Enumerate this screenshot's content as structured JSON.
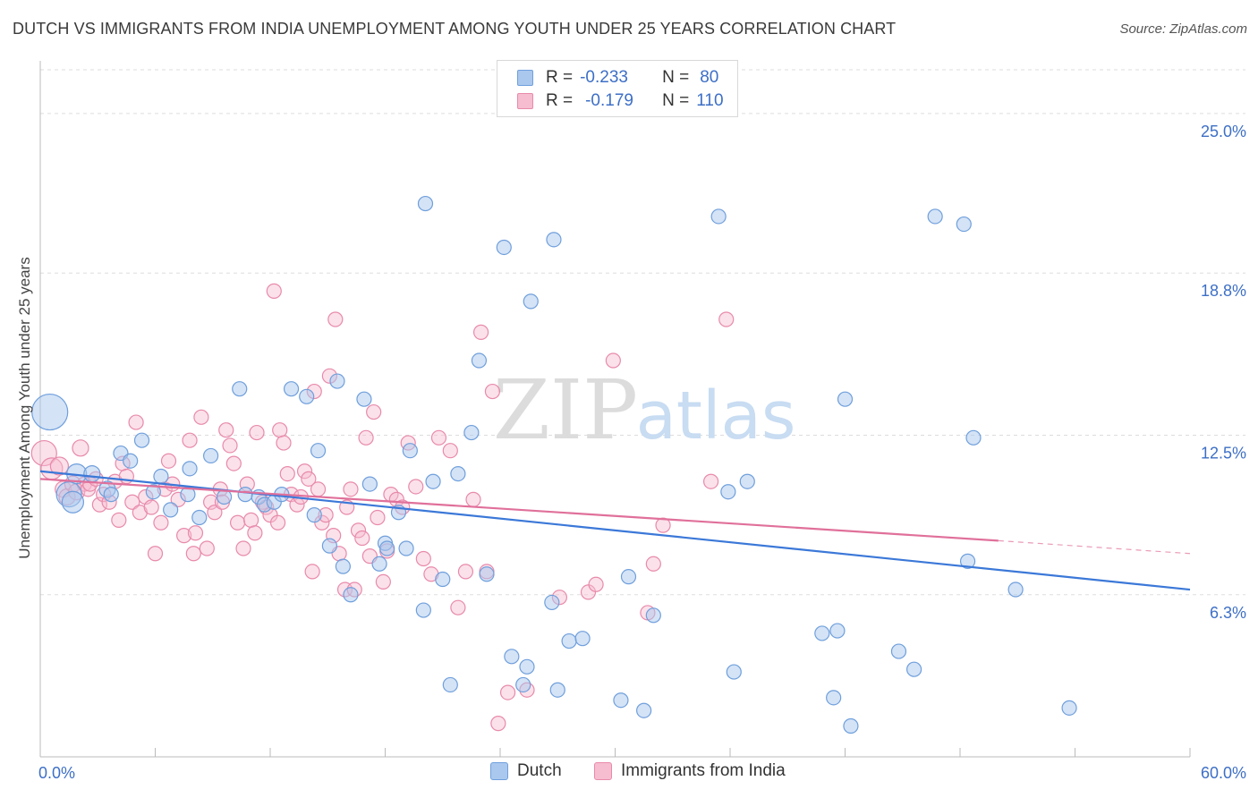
{
  "title": "DUTCH VS IMMIGRANTS FROM INDIA UNEMPLOYMENT AMONG YOUTH UNDER 25 YEARS CORRELATION CHART",
  "source": "Source: ZipAtlas.com",
  "watermark": {
    "zip": "ZIP",
    "atlas": "atlas"
  },
  "legend": {
    "rows": [
      {
        "r_label": "R =",
        "r_value": "-0.233",
        "n_label": "N =",
        "n_value": "80"
      },
      {
        "r_label": "R =",
        "r_value": "-0.179",
        "n_label": "N =",
        "n_value": "110"
      }
    ]
  },
  "bottom_legend": {
    "dutch": "Dutch",
    "india": "Immigrants from India"
  },
  "colors": {
    "dutch_fill": "#aac8ee",
    "dutch_stroke": "#6f9fdc",
    "dutch_line": "#3b78d8",
    "india_fill": "#f6bcd0",
    "india_stroke": "#e88aab",
    "india_line": "#e0709a",
    "tick_label": "#3d6fc6",
    "grid": "#dddddd"
  },
  "chart_data": {
    "type": "scatter",
    "title": "DUTCH VS IMMIGRANTS FROM INDIA UNEMPLOYMENT AMONG YOUTH UNDER 25 YEARS CORRELATION CHART",
    "xlabel": "",
    "ylabel": "Unemployment Among Youth under 25 years",
    "xlim": [
      0,
      60
    ],
    "ylim": [
      0,
      26.7
    ],
    "x_tick_labels": [
      "0.0%",
      "60.0%"
    ],
    "y_ticks": [
      6.3,
      12.5,
      18.8,
      25.0
    ],
    "y_tick_labels": [
      "6.3%",
      "12.5%",
      "18.8%",
      "25.0%"
    ],
    "grid": "horizontal dashed",
    "legend_position": "top-center",
    "series": [
      {
        "name": "Dutch",
        "r": -0.233,
        "n": 80,
        "trend": {
          "x": [
            0,
            60
          ],
          "y": [
            11.1,
            6.5
          ]
        },
        "points": [
          [
            0.5,
            13.4,
            20
          ],
          [
            1.5,
            10.2,
            14
          ],
          [
            1.7,
            9.9,
            12
          ],
          [
            1.9,
            11.0,
            11
          ],
          [
            2.7,
            11.0,
            9
          ],
          [
            3.5,
            10.4,
            9
          ],
          [
            3.7,
            10.2,
            8
          ],
          [
            4.2,
            11.8,
            8
          ],
          [
            4.7,
            11.5,
            8
          ],
          [
            5.3,
            12.3,
            8
          ],
          [
            5.9,
            10.3,
            8
          ],
          [
            6.3,
            10.9,
            8
          ],
          [
            6.8,
            9.6,
            8
          ],
          [
            7.7,
            10.2,
            8
          ],
          [
            7.8,
            11.2,
            8
          ],
          [
            8.3,
            9.3,
            8
          ],
          [
            8.9,
            11.7,
            8
          ],
          [
            9.6,
            10.1,
            8
          ],
          [
            10.4,
            14.3,
            8
          ],
          [
            10.7,
            10.2,
            8
          ],
          [
            11.4,
            10.1,
            8
          ],
          [
            11.7,
            9.8,
            8
          ],
          [
            12.2,
            9.9,
            8
          ],
          [
            12.6,
            10.2,
            8
          ],
          [
            13.1,
            14.3,
            8
          ],
          [
            13.9,
            14.0,
            8
          ],
          [
            14.3,
            9.4,
            8
          ],
          [
            14.5,
            11.9,
            8
          ],
          [
            15.1,
            8.2,
            8
          ],
          [
            15.5,
            14.6,
            8
          ],
          [
            15.8,
            7.4,
            8
          ],
          [
            16.2,
            6.3,
            8
          ],
          [
            16.9,
            13.9,
            8
          ],
          [
            17.2,
            10.6,
            8
          ],
          [
            17.7,
            7.5,
            8
          ],
          [
            18.0,
            8.3,
            8
          ],
          [
            18.1,
            8.1,
            8
          ],
          [
            18.7,
            9.5,
            8
          ],
          [
            19.1,
            8.1,
            8
          ],
          [
            19.3,
            11.9,
            8
          ],
          [
            20.0,
            5.7,
            8
          ],
          [
            20.1,
            21.5,
            8
          ],
          [
            20.5,
            10.7,
            8
          ],
          [
            21.0,
            6.9,
            8
          ],
          [
            21.4,
            2.8,
            8
          ],
          [
            21.8,
            11.0,
            8
          ],
          [
            22.5,
            12.6,
            8
          ],
          [
            22.9,
            15.4,
            8
          ],
          [
            23.3,
            7.1,
            8
          ],
          [
            24.2,
            19.8,
            8
          ],
          [
            24.6,
            3.9,
            8
          ],
          [
            25.2,
            2.8,
            8
          ],
          [
            25.4,
            3.5,
            8
          ],
          [
            25.6,
            17.7,
            8
          ],
          [
            26.7,
            6.0,
            8
          ],
          [
            26.8,
            20.1,
            8
          ],
          [
            27.0,
            2.6,
            8
          ],
          [
            27.6,
            4.5,
            8
          ],
          [
            28.3,
            4.6,
            8
          ],
          [
            30.3,
            2.2,
            8
          ],
          [
            30.7,
            7.0,
            8
          ],
          [
            31.5,
            1.8,
            8
          ],
          [
            32.0,
            5.5,
            8
          ],
          [
            35.4,
            21.0,
            8
          ],
          [
            35.9,
            10.3,
            8
          ],
          [
            36.2,
            3.3,
            8
          ],
          [
            36.9,
            10.7,
            8
          ],
          [
            40.8,
            4.8,
            8
          ],
          [
            41.4,
            2.3,
            8
          ],
          [
            41.6,
            4.9,
            8
          ],
          [
            42.0,
            13.9,
            8
          ],
          [
            42.3,
            1.2,
            8
          ],
          [
            44.8,
            4.1,
            8
          ],
          [
            45.6,
            3.4,
            8
          ],
          [
            46.7,
            21.0,
            8
          ],
          [
            48.2,
            20.7,
            8
          ],
          [
            48.4,
            7.6,
            8
          ],
          [
            48.7,
            12.4,
            8
          ],
          [
            50.9,
            6.5,
            8
          ],
          [
            53.7,
            1.9,
            8
          ]
        ]
      },
      {
        "name": "Immigrants from India",
        "r": -0.179,
        "n": 110,
        "trend": {
          "x": [
            0,
            50
          ],
          "y": [
            10.8,
            8.4
          ]
        },
        "trend_dashed": {
          "x": [
            50,
            60
          ],
          "y": [
            8.4,
            7.9
          ]
        },
        "points": [
          [
            0.2,
            11.8,
            14
          ],
          [
            0.6,
            11.2,
            12
          ],
          [
            1.0,
            11.3,
            10
          ],
          [
            1.2,
            10.4,
            9
          ],
          [
            1.4,
            10.1,
            9
          ],
          [
            1.7,
            10.6,
            9
          ],
          [
            1.9,
            10.3,
            9
          ],
          [
            2.1,
            12.0,
            9
          ],
          [
            2.3,
            10.6,
            8
          ],
          [
            2.5,
            10.4,
            8
          ],
          [
            2.6,
            10.6,
            8
          ],
          [
            2.9,
            10.8,
            8
          ],
          [
            3.1,
            9.8,
            8
          ],
          [
            3.3,
            10.2,
            8
          ],
          [
            3.6,
            9.9,
            8
          ],
          [
            3.9,
            10.7,
            8
          ],
          [
            4.1,
            9.2,
            8
          ],
          [
            4.3,
            11.4,
            8
          ],
          [
            4.5,
            10.9,
            8
          ],
          [
            4.8,
            9.9,
            8
          ],
          [
            5.0,
            13.0,
            8
          ],
          [
            5.2,
            9.5,
            8
          ],
          [
            5.5,
            10.1,
            8
          ],
          [
            5.8,
            9.7,
            8
          ],
          [
            6.0,
            7.9,
            8
          ],
          [
            6.3,
            9.1,
            8
          ],
          [
            6.5,
            10.4,
            8
          ],
          [
            6.7,
            11.5,
            8
          ],
          [
            6.9,
            10.6,
            8
          ],
          [
            7.2,
            10.0,
            8
          ],
          [
            7.5,
            8.6,
            8
          ],
          [
            7.8,
            12.3,
            8
          ],
          [
            8.0,
            7.9,
            8
          ],
          [
            8.1,
            8.7,
            8
          ],
          [
            8.4,
            13.2,
            8
          ],
          [
            8.7,
            8.1,
            8
          ],
          [
            8.9,
            9.9,
            8
          ],
          [
            9.1,
            9.5,
            8
          ],
          [
            9.4,
            10.4,
            8
          ],
          [
            9.5,
            9.9,
            8
          ],
          [
            9.7,
            12.7,
            8
          ],
          [
            9.9,
            12.1,
            8
          ],
          [
            10.1,
            11.4,
            8
          ],
          [
            10.3,
            9.1,
            8
          ],
          [
            10.6,
            8.1,
            8
          ],
          [
            10.8,
            10.6,
            8
          ],
          [
            11.0,
            9.2,
            8
          ],
          [
            11.2,
            8.7,
            8
          ],
          [
            11.3,
            12.6,
            8
          ],
          [
            11.6,
            9.9,
            8
          ],
          [
            11.8,
            9.7,
            8
          ],
          [
            12.0,
            9.4,
            8
          ],
          [
            12.2,
            18.1,
            8
          ],
          [
            12.4,
            9.1,
            8
          ],
          [
            12.5,
            12.7,
            8
          ],
          [
            12.7,
            12.2,
            8
          ],
          [
            12.9,
            11.0,
            8
          ],
          [
            13.1,
            10.2,
            8
          ],
          [
            13.4,
            9.8,
            8
          ],
          [
            13.6,
            10.1,
            8
          ],
          [
            13.8,
            11.1,
            8
          ],
          [
            14.0,
            10.8,
            8
          ],
          [
            14.2,
            7.2,
            8
          ],
          [
            14.3,
            14.2,
            8
          ],
          [
            14.5,
            10.4,
            8
          ],
          [
            14.7,
            9.1,
            8
          ],
          [
            14.9,
            9.4,
            8
          ],
          [
            15.1,
            14.8,
            8
          ],
          [
            15.3,
            8.6,
            8
          ],
          [
            15.4,
            17.0,
            8
          ],
          [
            15.6,
            7.9,
            8
          ],
          [
            15.9,
            6.5,
            8
          ],
          [
            16.0,
            9.7,
            8
          ],
          [
            16.2,
            10.4,
            8
          ],
          [
            16.4,
            6.5,
            8
          ],
          [
            16.6,
            8.8,
            8
          ],
          [
            16.8,
            8.5,
            8
          ],
          [
            17.0,
            12.4,
            8
          ],
          [
            17.2,
            7.8,
            8
          ],
          [
            17.4,
            13.4,
            8
          ],
          [
            17.6,
            9.3,
            8
          ],
          [
            17.9,
            6.8,
            8
          ],
          [
            18.1,
            8.0,
            8
          ],
          [
            18.3,
            10.2,
            8
          ],
          [
            18.6,
            10.0,
            8
          ],
          [
            18.9,
            9.7,
            8
          ],
          [
            19.2,
            12.2,
            8
          ],
          [
            19.6,
            10.5,
            8
          ],
          [
            20.0,
            7.7,
            8
          ],
          [
            20.4,
            7.1,
            8
          ],
          [
            20.8,
            12.4,
            8
          ],
          [
            21.4,
            11.9,
            8
          ],
          [
            21.8,
            5.8,
            8
          ],
          [
            22.2,
            7.2,
            8
          ],
          [
            22.6,
            10.0,
            8
          ],
          [
            23.0,
            16.5,
            8
          ],
          [
            23.3,
            7.2,
            8
          ],
          [
            23.6,
            14.2,
            8
          ],
          [
            23.9,
            1.3,
            8
          ],
          [
            24.4,
            2.5,
            8
          ],
          [
            25.4,
            2.6,
            8
          ],
          [
            27.1,
            6.2,
            8
          ],
          [
            28.6,
            6.4,
            8
          ],
          [
            29.0,
            6.7,
            8
          ],
          [
            29.9,
            15.4,
            8
          ],
          [
            31.7,
            5.6,
            8
          ],
          [
            32.0,
            7.5,
            8
          ],
          [
            32.5,
            9.0,
            8
          ],
          [
            35.0,
            10.7,
            8
          ],
          [
            35.8,
            17.0,
            8
          ]
        ]
      }
    ]
  }
}
